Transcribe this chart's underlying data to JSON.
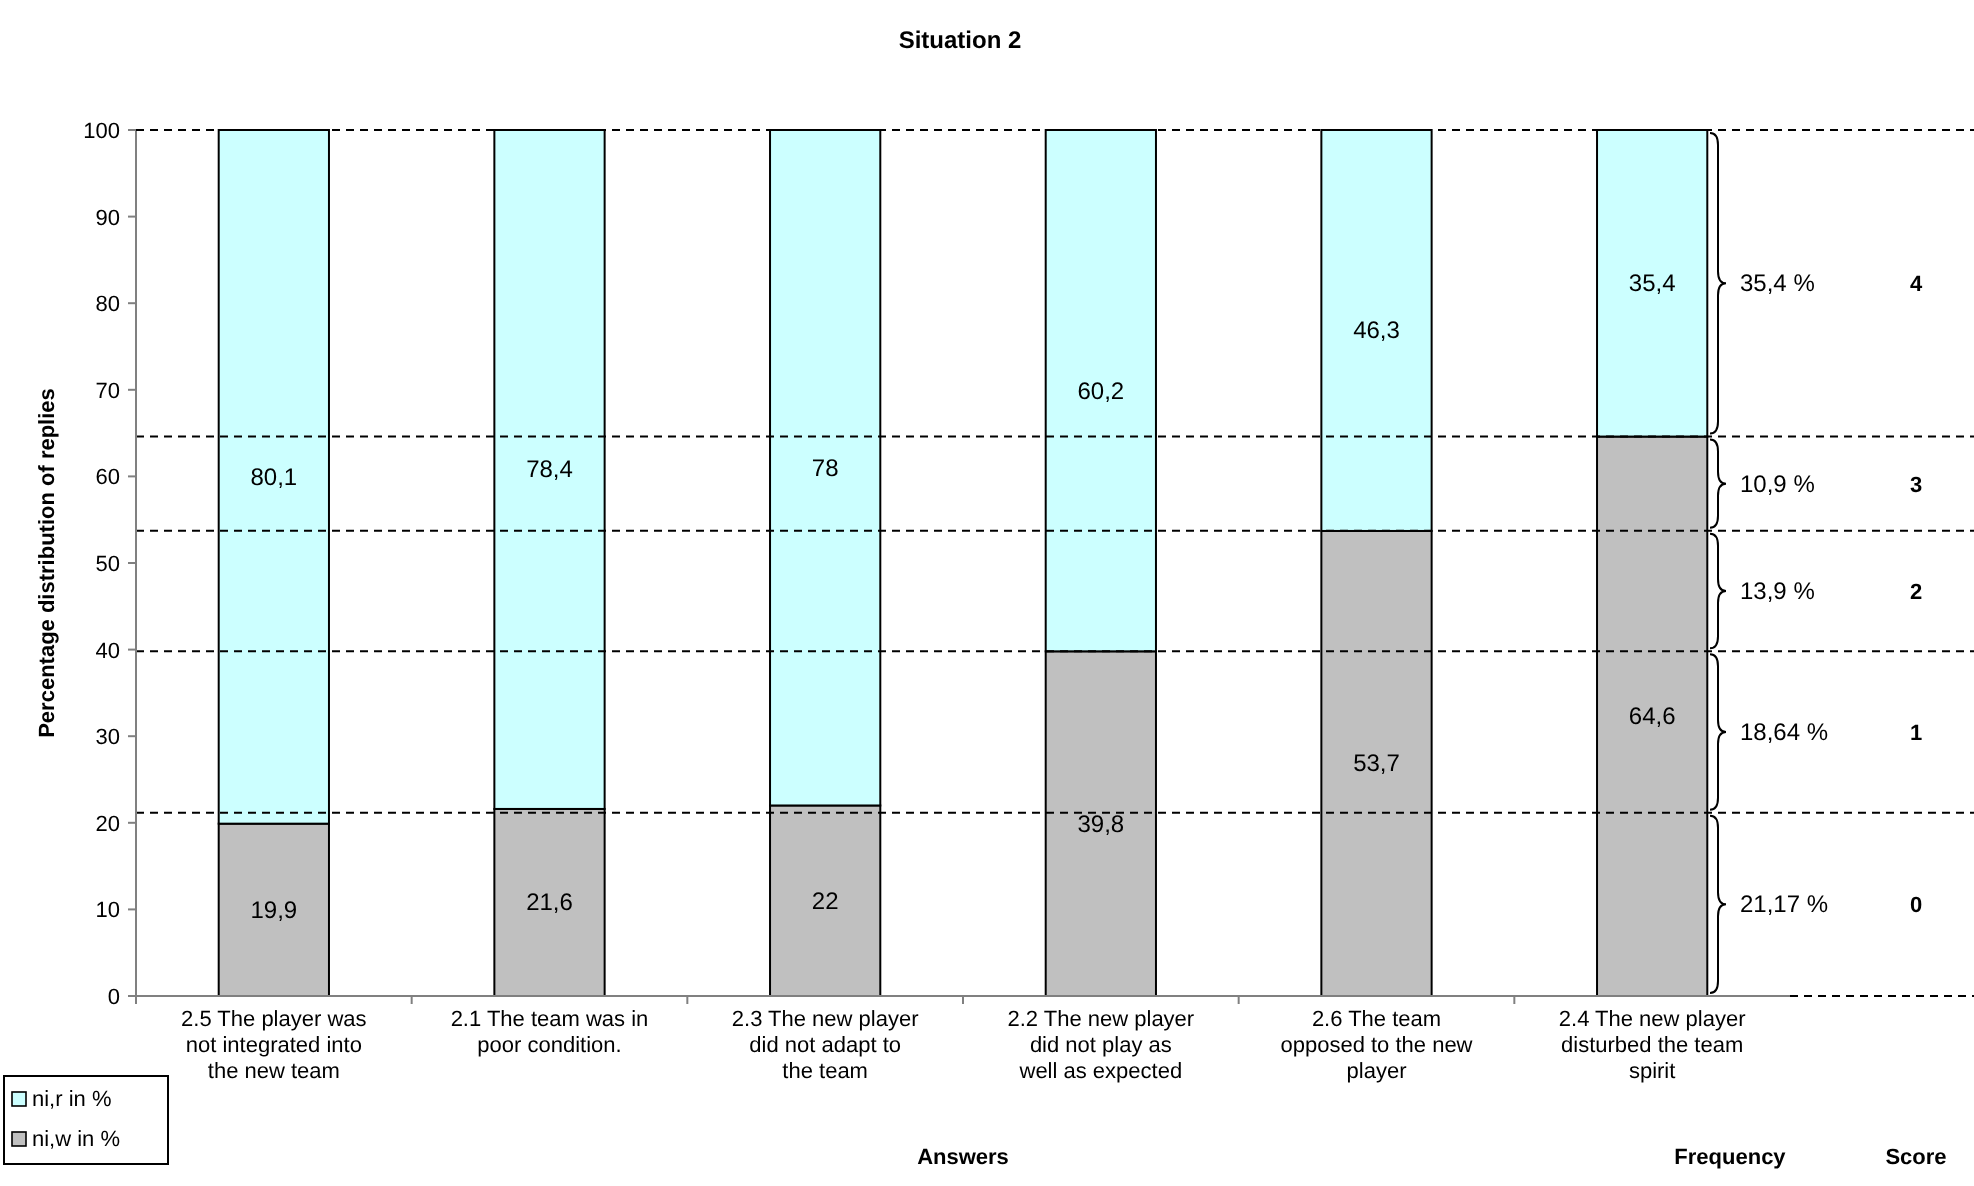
{
  "chart_data": {
    "type": "bar",
    "title": "Situation 2",
    "xlabel": "Answers",
    "ylabel": "Percentage distribution of replies",
    "categories": [
      "2.5 The player was not integrated into the new team",
      "2.1 The team was in poor condition.",
      "2.3 The new player did not adapt to the team",
      "2.2 The new player did not play as well as expected",
      "2.6 The team opposed to the new player",
      "2.4 The new player disturbed the team spirit"
    ],
    "stacked": true,
    "data_labels": true,
    "series": [
      {
        "name": "ni,w in %",
        "color": "#c0c0c0",
        "values": [
          19.9,
          21.6,
          22,
          39.8,
          53.7,
          64.6
        ],
        "value_labels": [
          "19,9",
          "21,6",
          "22",
          "39,8",
          "53,7",
          "64,6"
        ]
      },
      {
        "name": "ni,r in %",
        "color": "#ccffff",
        "values": [
          80.1,
          78.4,
          78,
          60.2,
          46.3,
          35.4
        ],
        "value_labels": [
          "80,1",
          "78,4",
          "78",
          "60,2",
          "46,3",
          "35,4"
        ]
      }
    ],
    "ylim": [
      0,
      100
    ],
    "yticks": [
      0,
      10,
      20,
      30,
      40,
      50,
      60,
      70,
      80,
      90,
      100
    ],
    "grid": false,
    "legend": "bottom left",
    "ref_lines": [
      {
        "axis": "y",
        "value": 21.17,
        "line_style": "dashed",
        "color": "#000000"
      },
      {
        "axis": "y",
        "value": 39.81,
        "line_style": "dashed",
        "color": "#000000"
      },
      {
        "axis": "y",
        "value": 53.71,
        "line_style": "dashed",
        "color": "#000000"
      },
      {
        "axis": "y",
        "value": 64.61,
        "line_style": "dashed",
        "color": "#000000"
      }
    ],
    "annotations": [
      "Frequency",
      "Score",
      "21,17 %",
      "18,64 %",
      "13,9 %",
      "10,9 %",
      "35,4 %",
      "0",
      "1",
      "2",
      "3",
      "4"
    ]
  }
}
